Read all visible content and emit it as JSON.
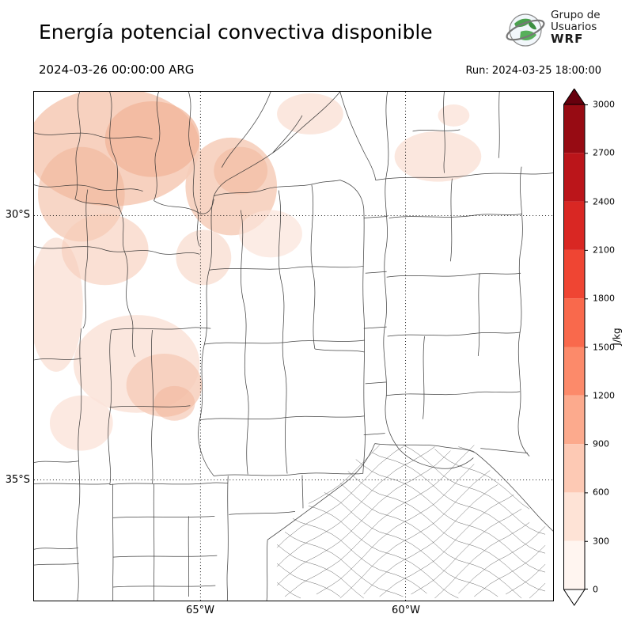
{
  "header": {
    "title": "Energía potencial convectiva disponible",
    "valid_time": "2024-03-26 00:00:00 ARG",
    "run_label": "Run: 2024-03-25 18:00:00",
    "logo": {
      "line1": "Grupo de",
      "line2": "Usuarios",
      "line3": "WRF"
    }
  },
  "map": {
    "lat_labels": [
      "30°S",
      "35°S"
    ],
    "lon_labels": [
      "65°W",
      "60°W"
    ]
  },
  "colorbar": {
    "unit": "J/kg",
    "ticks": [
      "3000",
      "2700",
      "2400",
      "2100",
      "1800",
      "1500",
      "1200",
      "900",
      "600",
      "300",
      "0"
    ],
    "segment_colors_top_to_bottom": [
      "#970b13",
      "#bb151a",
      "#d92723",
      "#ef4533",
      "#f9694c",
      "#fc8a6a",
      "#fcaa8d",
      "#fdc9b4",
      "#fee3d6",
      "#fff5f0"
    ],
    "over_color": "#67000d",
    "under_color": "#ffffff"
  },
  "chart_data": {
    "type": "heatmap",
    "title": "Energía potencial convectiva disponible",
    "unit": "J/kg",
    "colorbar_ticks": [
      0,
      300,
      600,
      900,
      1200,
      1500,
      1800,
      2100,
      2400,
      2700,
      3000
    ],
    "gridline_latitudes": [
      "30°S",
      "35°S"
    ],
    "gridline_longitudes": [
      "65°W",
      "60°W"
    ],
    "observed_values": "Shading of roughly 0–600 J/kg over the northwestern part of the domain; near 0 elsewhere"
  }
}
